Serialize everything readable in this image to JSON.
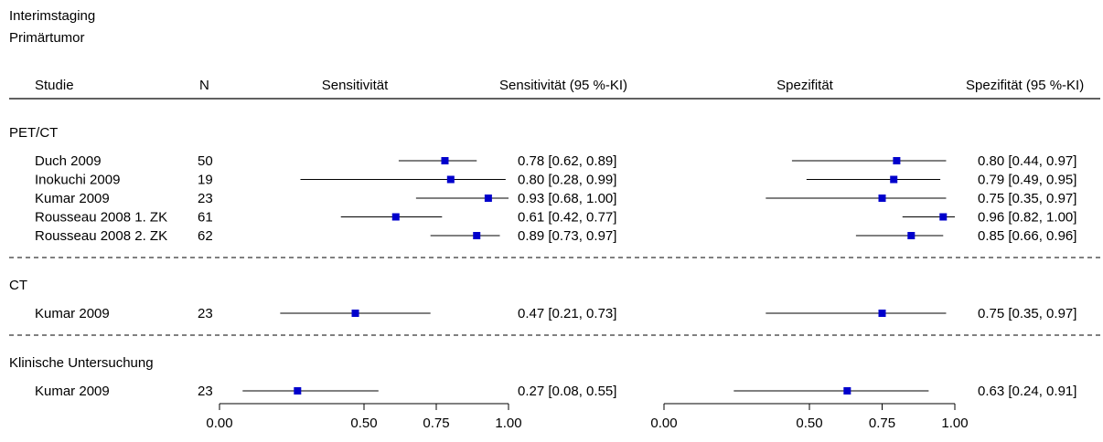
{
  "chart_data": {
    "type": "forest",
    "title_lines": [
      "Interimstaging",
      "Primärtumor"
    ],
    "columns": {
      "study": "Studie",
      "n": "N",
      "sens_plot": "Sensitivität",
      "sens_text": "Sensitivität (95 %-KI)",
      "spec_plot": "Spezifität",
      "spec_text": "Spezifität (95 %-KI)"
    },
    "xlim": [
      0,
      1
    ],
    "x_ticks": [
      0,
      0.5,
      0.75,
      1
    ],
    "x_tick_labels": [
      "0.00",
      "0.50",
      "0.75",
      "1.00"
    ],
    "point_color": "#0000cc",
    "groups": [
      {
        "label": "PET/CT",
        "studies": [
          {
            "study": "Duch 2009",
            "n": "50",
            "sens": 0.78,
            "sens_ci": [
              0.62,
              0.89
            ],
            "sens_label": "0.78 [0.62, 0.89]",
            "spec": 0.8,
            "spec_ci": [
              0.44,
              0.97
            ],
            "spec_label": "0.80 [0.44, 0.97]"
          },
          {
            "study": "Inokuchi 2009",
            "n": "19",
            "sens": 0.8,
            "sens_ci": [
              0.28,
              0.99
            ],
            "sens_label": "0.80 [0.28, 0.99]",
            "spec": 0.79,
            "spec_ci": [
              0.49,
              0.95
            ],
            "spec_label": "0.79 [0.49, 0.95]"
          },
          {
            "study": "Kumar 2009",
            "n": "23",
            "sens": 0.93,
            "sens_ci": [
              0.68,
              1.0
            ],
            "sens_label": "0.93 [0.68, 1.00]",
            "spec": 0.75,
            "spec_ci": [
              0.35,
              0.97
            ],
            "spec_label": "0.75 [0.35, 0.97]"
          },
          {
            "study": "Rousseau 2008 1. ZK",
            "n": "61",
            "sens": 0.61,
            "sens_ci": [
              0.42,
              0.77
            ],
            "sens_label": "0.61 [0.42, 0.77]",
            "spec": 0.96,
            "spec_ci": [
              0.82,
              1.0
            ],
            "spec_label": "0.96 [0.82, 1.00]"
          },
          {
            "study": "Rousseau 2008 2. ZK",
            "n": "62",
            "sens": 0.89,
            "sens_ci": [
              0.73,
              0.97
            ],
            "sens_label": "0.89 [0.73, 0.97]",
            "spec": 0.85,
            "spec_ci": [
              0.66,
              0.96
            ],
            "spec_label": "0.85 [0.66, 0.96]"
          }
        ]
      },
      {
        "label": "CT",
        "studies": [
          {
            "study": "Kumar 2009",
            "n": "23",
            "sens": 0.47,
            "sens_ci": [
              0.21,
              0.73
            ],
            "sens_label": "0.47 [0.21, 0.73]",
            "spec": 0.75,
            "spec_ci": [
              0.35,
              0.97
            ],
            "spec_label": "0.75 [0.35, 0.97]"
          }
        ]
      },
      {
        "label": "Klinische Untersuchung",
        "studies": [
          {
            "study": "Kumar 2009",
            "n": "23",
            "sens": 0.27,
            "sens_ci": [
              0.08,
              0.55
            ],
            "sens_label": "0.27 [0.08, 0.55]",
            "spec": 0.63,
            "spec_ci": [
              0.24,
              0.91
            ],
            "spec_label": "0.63 [0.24, 0.91]"
          }
        ]
      }
    ]
  }
}
